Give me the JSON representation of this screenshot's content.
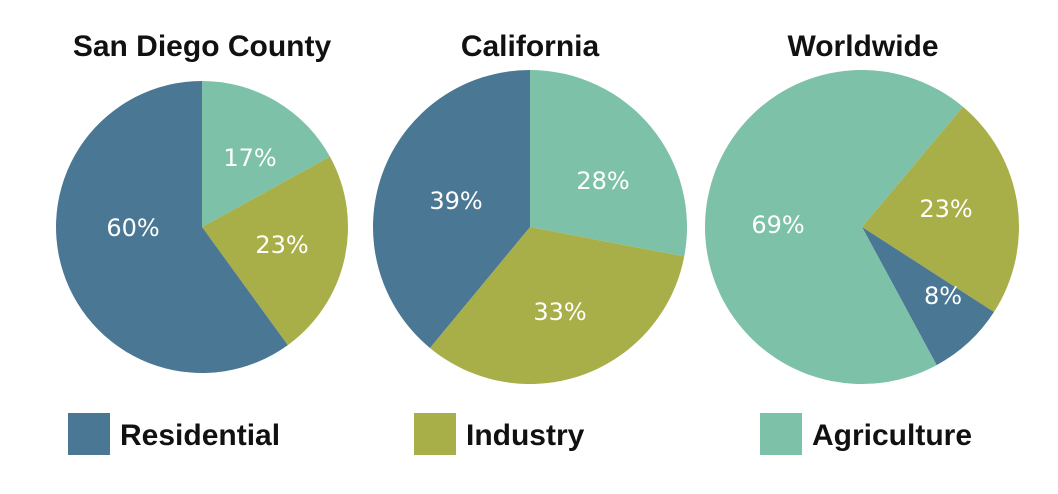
{
  "colors": {
    "Residential": "#4a7793",
    "Industry": "#a8ae48",
    "Agriculture": "#7cc1a8"
  },
  "chart_data": [
    {
      "type": "pie",
      "title": "San Diego County",
      "slices": [
        {
          "label": "Agriculture",
          "value": 17,
          "text": "17%"
        },
        {
          "label": "Industry",
          "value": 23,
          "text": "23%"
        },
        {
          "label": "Residential",
          "value": 60,
          "text": "60%"
        }
      ]
    },
    {
      "type": "pie",
      "title": "California",
      "slices": [
        {
          "label": "Agriculture",
          "value": 28,
          "text": "28%"
        },
        {
          "label": "Industry",
          "value": 33,
          "text": "33%"
        },
        {
          "label": "Residential",
          "value": 39,
          "text": "39%"
        }
      ]
    },
    {
      "type": "pie",
      "title": "Worldwide",
      "slices": [
        {
          "label": "Industry",
          "value": 23,
          "text": "23%"
        },
        {
          "label": "Residential",
          "value": 8,
          "text": "8%"
        },
        {
          "label": "Agriculture",
          "value": 69,
          "text": "69%"
        }
      ]
    }
  ],
  "legend": {
    "items": [
      {
        "label": "Residential"
      },
      {
        "label": "Industry"
      },
      {
        "label": "Agriculture"
      }
    ]
  }
}
